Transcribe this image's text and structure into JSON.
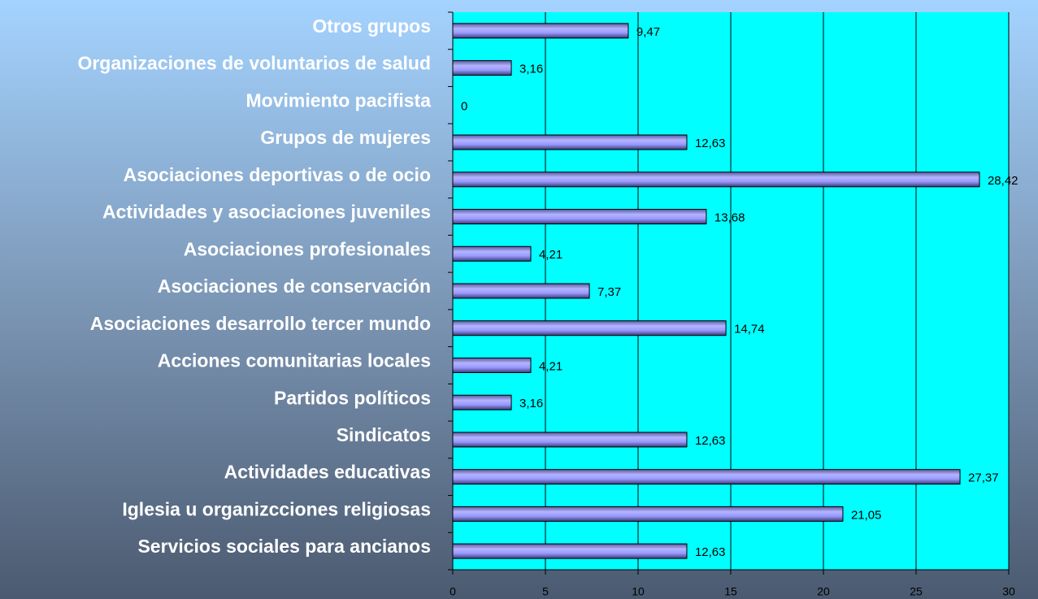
{
  "chart_data": {
    "type": "bar",
    "orientation": "horizontal",
    "categories": [
      "Otros grupos",
      "Organizaciones de voluntarios de salud",
      "Movimiento pacifista",
      "Grupos de mujeres",
      "Asociaciones deportivas o de ocio",
      "Actividades y asociaciones juveniles",
      "Asociaciones profesionales",
      "Asociaciones de conservación",
      "Asociaciones desarrollo tercer mundo",
      "Acciones comunitarias locales",
      "Partidos políticos",
      "Sindicatos",
      "Actividades educativas",
      "Iglesia u organizcciones religiosas",
      "Servicios sociales para ancianos"
    ],
    "values": [
      9.47,
      3.16,
      0,
      12.63,
      28.42,
      13.68,
      4.21,
      7.37,
      14.74,
      4.21,
      3.16,
      12.63,
      27.37,
      21.05,
      12.63
    ],
    "value_labels": [
      "9,47",
      "3,16",
      "0",
      "12,63",
      "28,42",
      "13,68",
      "4,21",
      "7,37",
      "14,74",
      "4,21",
      "3,16",
      "12,63",
      "27,37",
      "21,05",
      "12,63"
    ],
    "color": "#9999ff",
    "xlim": [
      0,
      30
    ],
    "xticks": [
      0,
      5,
      10,
      15,
      20,
      25,
      30
    ],
    "grid": true
  }
}
